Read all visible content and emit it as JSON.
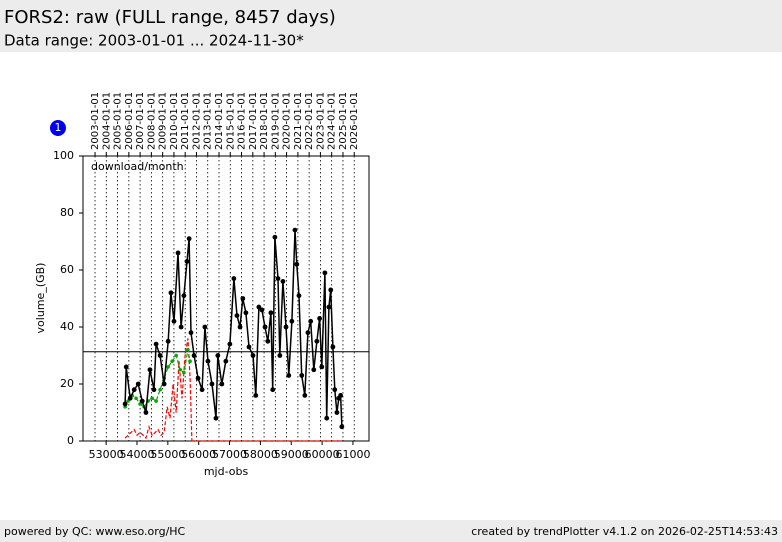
{
  "header": {
    "title": "FORS2: raw (FULL range, 8457 days)",
    "subtitle": "Data range: 2003-01-01 ... 2024-11-30*"
  },
  "footer": {
    "left": "powered by QC: www.eso.org/HC",
    "right": "created by trendPlotter v4.1.2 on 2026-02-25T14:53:43"
  },
  "badge": "1",
  "chart_data": {
    "type": "line",
    "annotation": "download/month",
    "xlabel": "mjd-obs",
    "ylabel": "volume_(GB)",
    "xlim": [
      52250,
      61520
    ],
    "ylim": [
      0,
      100
    ],
    "xticks": [
      53000,
      54000,
      55000,
      56000,
      57000,
      58000,
      59000,
      60000,
      61000
    ],
    "yticks": [
      0,
      20,
      40,
      60,
      80,
      100
    ],
    "top_ticks": [
      {
        "value": 52640,
        "label": "2003-01-01"
      },
      {
        "value": 53005,
        "label": "2004-01-01"
      },
      {
        "value": 53371,
        "label": "2005-01-01"
      },
      {
        "value": 53736,
        "label": "2006-01-01"
      },
      {
        "value": 54101,
        "label": "2007-01-01"
      },
      {
        "value": 54466,
        "label": "2008-01-01"
      },
      {
        "value": 54832,
        "label": "2009-01-01"
      },
      {
        "value": 55197,
        "label": "2010-01-01"
      },
      {
        "value": 55562,
        "label": "2011-01-01"
      },
      {
        "value": 55927,
        "label": "2012-01-01"
      },
      {
        "value": 56293,
        "label": "2013-01-01"
      },
      {
        "value": 56658,
        "label": "2014-01-01"
      },
      {
        "value": 57023,
        "label": "2015-01-01"
      },
      {
        "value": 57388,
        "label": "2016-01-01"
      },
      {
        "value": 57754,
        "label": "2017-01-01"
      },
      {
        "value": 58119,
        "label": "2018-01-01"
      },
      {
        "value": 58484,
        "label": "2019-01-01"
      },
      {
        "value": 58849,
        "label": "2020-01-01"
      },
      {
        "value": 59215,
        "label": "2021-01-01"
      },
      {
        "value": 59580,
        "label": "2022-01-01"
      },
      {
        "value": 59945,
        "label": "2023-01-01"
      },
      {
        "value": 60310,
        "label": "2024-01-01"
      },
      {
        "value": 60676,
        "label": "2025-01-01"
      },
      {
        "value": 61041,
        "label": "2026-01-01"
      }
    ],
    "hline": 31.3,
    "series": [
      {
        "color": "#ff0000",
        "style": "dashed",
        "marker": false,
        "x": [
          53615,
          53710,
          53810,
          53910,
          54000,
          54100,
          54200,
          54290,
          54390,
          54490,
          54590,
          54680,
          54780,
          54880,
          54980,
          55070,
          55170,
          55270,
          55360,
          55460,
          55560,
          55650,
          55720,
          55780,
          60640
        ],
        "values": [
          1,
          2,
          3,
          4,
          2,
          3,
          2,
          1,
          5,
          2,
          3,
          4,
          2,
          3,
          12,
          8,
          20,
          10,
          28,
          15,
          30,
          36,
          22,
          0,
          0
        ]
      },
      {
        "color": "#00aa00",
        "style": "dashed",
        "marker": true,
        "x": [
          53615,
          53710,
          53840,
          53970,
          54100,
          54230,
          54360,
          54490,
          54620,
          54750,
          54880,
          55010,
          55140,
          55270,
          55400,
          55520,
          55650,
          55720
        ],
        "values": [
          12,
          14,
          16,
          15,
          13,
          12,
          14,
          15,
          14,
          18,
          22,
          26,
          28,
          30,
          25,
          24,
          32,
          28
        ]
      },
      {
        "color": "#000000",
        "style": "solid",
        "marker": true,
        "x": [
          53615,
          53650,
          53780,
          53910,
          54040,
          54170,
          54290,
          54420,
          54550,
          54620,
          54750,
          54880,
          55010,
          55100,
          55200,
          55330,
          55430,
          55520,
          55620,
          55690,
          55750,
          55850,
          55980,
          56110,
          56200,
          56300,
          56430,
          56560,
          56620,
          56750,
          56880,
          57010,
          57140,
          57240,
          57340,
          57430,
          57530,
          57630,
          57760,
          57850,
          57950,
          58050,
          58150,
          58240,
          58340,
          58400,
          58470,
          58570,
          58630,
          58730,
          58830,
          58920,
          59020,
          59120,
          59180,
          59250,
          59340,
          59440,
          59540,
          59630,
          59730,
          59830,
          59920,
          59990,
          60090,
          60150,
          60220,
          60280,
          60350,
          60410,
          60480,
          60540,
          60600,
          60640
        ],
        "values": [
          13,
          26,
          15,
          18,
          20,
          14,
          10,
          25,
          18,
          34,
          30,
          20,
          35,
          52,
          42,
          66,
          40,
          51,
          63,
          71,
          38,
          30,
          22,
          18,
          40,
          28,
          20,
          8,
          30,
          20,
          28,
          34,
          57,
          44,
          40,
          50,
          45,
          33,
          30,
          16,
          47,
          46,
          40,
          35,
          45,
          18,
          71.5,
          57,
          30,
          56,
          40,
          23,
          42,
          74,
          62,
          51,
          23,
          16,
          38,
          42,
          25,
          35,
          43,
          26,
          59,
          8,
          47,
          53,
          33,
          18,
          10,
          15,
          16,
          5
        ]
      }
    ]
  }
}
